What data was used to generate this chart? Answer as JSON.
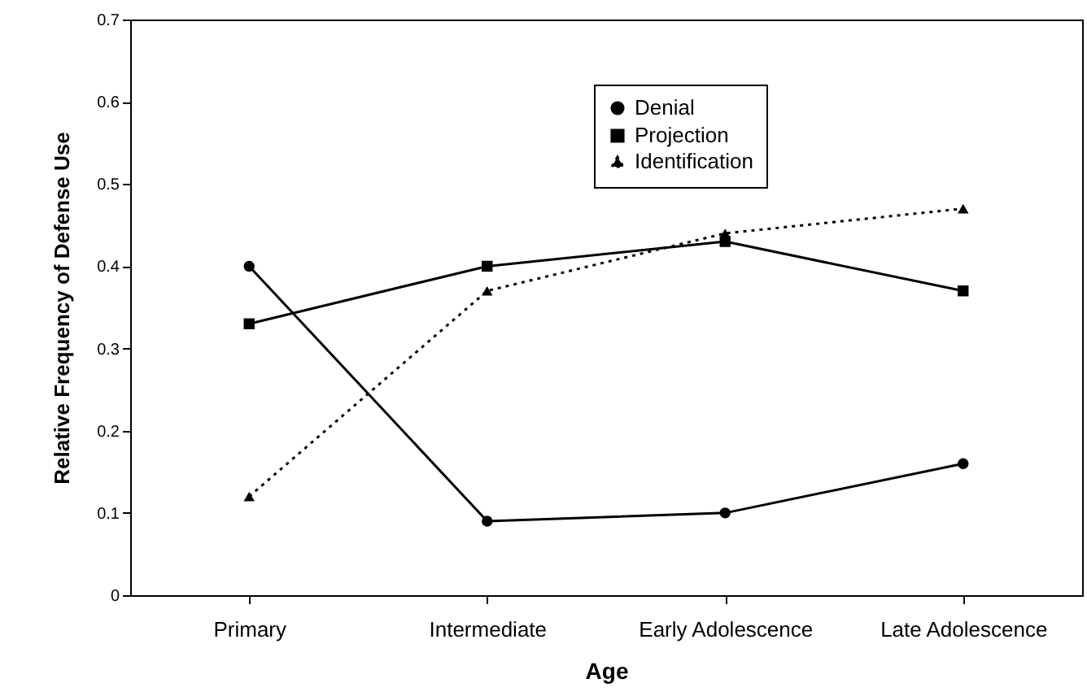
{
  "chart_data": {
    "type": "line",
    "xlabel": "Age",
    "ylabel": "Relative Frequency of Defense Use",
    "categories": [
      "Primary",
      "Intermediate",
      "Early Adolescence",
      "Late Adolescence"
    ],
    "series": [
      {
        "name": "Denial",
        "color": "#000000",
        "marker": "circle",
        "line_style": "solid",
        "values": [
          0.4,
          0.09,
          0.1,
          0.16
        ]
      },
      {
        "name": "Projection",
        "color": "#000000",
        "marker": "square",
        "line_style": "solid",
        "values": [
          0.33,
          0.4,
          0.43,
          0.37
        ]
      },
      {
        "name": "Identification",
        "color": "#000000",
        "marker": "triangle",
        "line_style": "dotted",
        "values": [
          0.12,
          0.37,
          0.44,
          0.47
        ]
      }
    ],
    "ylim": [
      0,
      0.7
    ],
    "yticks": [
      0,
      0.1,
      0.2,
      0.3,
      0.4,
      0.5,
      0.6,
      0.7
    ],
    "grid": false,
    "legend": "top right"
  }
}
